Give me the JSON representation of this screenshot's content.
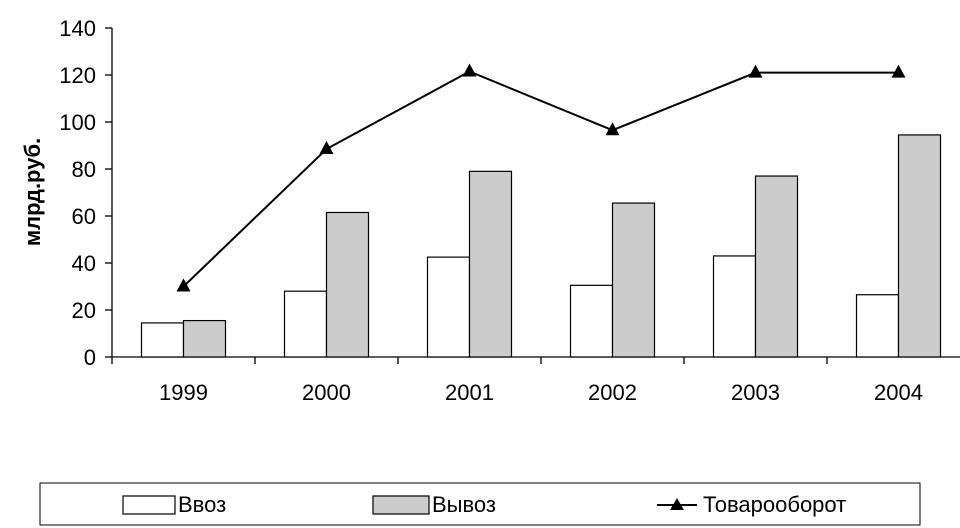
{
  "chart_data": {
    "type": "bar",
    "ylabel": "млрд.руб.",
    "ylim": [
      0,
      140
    ],
    "yticks": [
      "0",
      "20",
      "40",
      "60",
      "80",
      "100",
      "120",
      "140"
    ],
    "categories": [
      "1999",
      "2000",
      "2001",
      "2002",
      "2003",
      "2004"
    ],
    "series": [
      {
        "name": "Ввоз",
        "kind": "bar",
        "color": "#ffffff",
        "values": [
          14.5,
          28,
          42.5,
          30.5,
          43,
          26.5
        ]
      },
      {
        "name": "Вывоз",
        "kind": "bar",
        "color": "#cccccc",
        "values": [
          15.5,
          61.5,
          79,
          65.5,
          77,
          94.5
        ]
      },
      {
        "name": "Товарооборот",
        "kind": "line",
        "color": "#000000",
        "marker": "triangle",
        "values": [
          30,
          88.5,
          121.5,
          96.5,
          121,
          121
        ]
      }
    ],
    "grid": false,
    "legend_position": "bottom"
  }
}
